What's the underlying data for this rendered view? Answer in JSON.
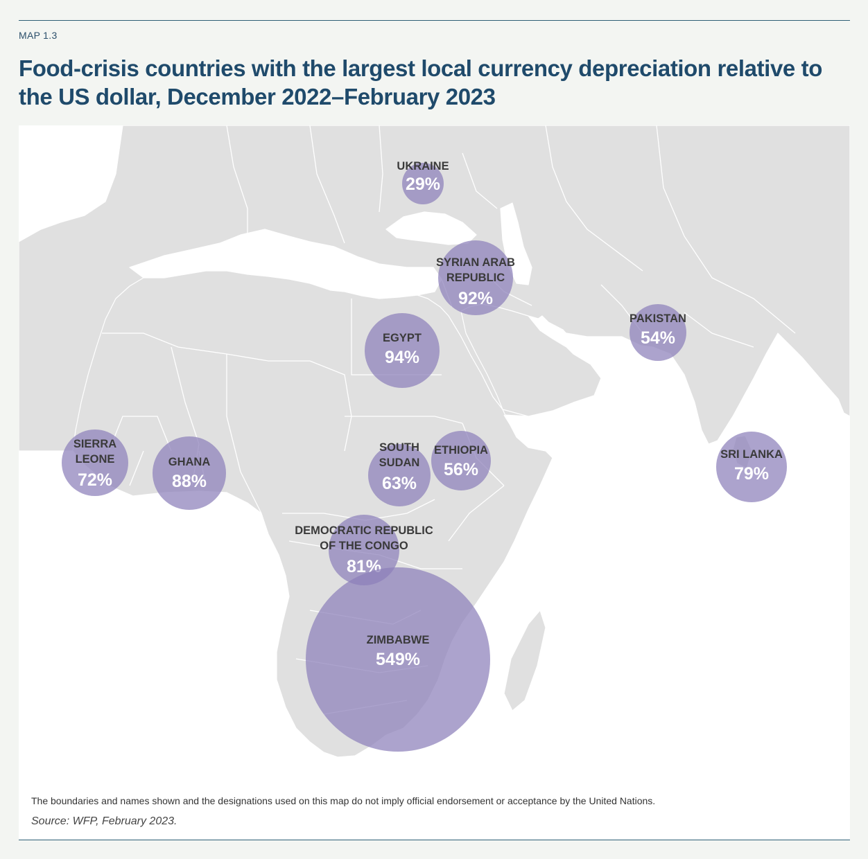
{
  "header": {
    "map_label": "MAP 1.3",
    "title": "Food-crisis countries with the largest local currency depreciation relative to the US dollar, December 2022–February 2023"
  },
  "colors": {
    "land": "#e0e0e0",
    "sea": "#ffffff",
    "bubble": "#8c7fba",
    "title": "#1f4a6b"
  },
  "map": {
    "countries": [
      {
        "id": "ukraine",
        "name_lines": [
          "UKRAINE"
        ],
        "value": "29%",
        "depreciation_pct": 29
      },
      {
        "id": "syria",
        "name_lines": [
          "SYRIAN ARAB",
          "REPUBLIC"
        ],
        "value": "92%",
        "depreciation_pct": 92
      },
      {
        "id": "egypt",
        "name_lines": [
          "EGYPT"
        ],
        "value": "94%",
        "depreciation_pct": 94
      },
      {
        "id": "pakistan",
        "name_lines": [
          "PAKISTAN"
        ],
        "value": "54%",
        "depreciation_pct": 54
      },
      {
        "id": "sierra-leone",
        "name_lines": [
          "SIERRA",
          "LEONE"
        ],
        "value": "72%",
        "depreciation_pct": 72
      },
      {
        "id": "ghana",
        "name_lines": [
          "GHANA"
        ],
        "value": "88%",
        "depreciation_pct": 88
      },
      {
        "id": "south-sudan",
        "name_lines": [
          "SOUTH",
          "SUDAN"
        ],
        "value": "63%",
        "depreciation_pct": 63
      },
      {
        "id": "ethiopia",
        "name_lines": [
          "ETHIOPIA"
        ],
        "value": "56%",
        "depreciation_pct": 56
      },
      {
        "id": "sri-lanka",
        "name_lines": [
          "SRI LANKA"
        ],
        "value": "79%",
        "depreciation_pct": 79
      },
      {
        "id": "drc",
        "name_lines": [
          "DEMOCRATIC REPUBLIC",
          "OF THE CONGO"
        ],
        "value": "81%",
        "depreciation_pct": 81
      },
      {
        "id": "zimbabwe",
        "name_lines": [
          "ZIMBABWE"
        ],
        "value": "549%",
        "depreciation_pct": 549
      }
    ]
  },
  "footer": {
    "disclaimer": "The boundaries and names shown and the designations used on this map do not imply official endorsement or acceptance by the United Nations.",
    "source": "Source: WFP, February 2023."
  }
}
